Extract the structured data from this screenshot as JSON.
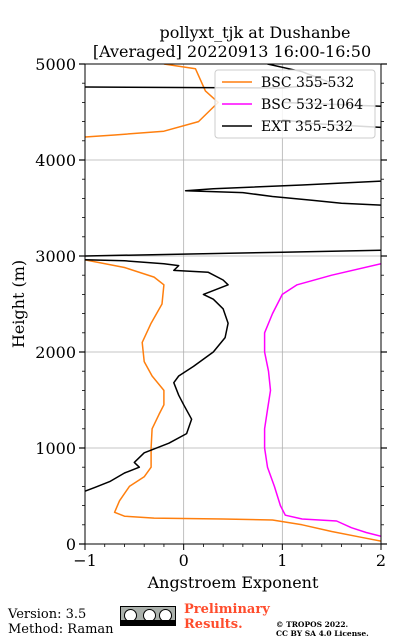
{
  "chart_data": {
    "type": "line",
    "title": "pollyxt_tjk at Dushanbe",
    "subtitle": "[Averaged] 20220913 16:00-16:50",
    "xlabel": "Angstroem Exponent",
    "ylabel": "Height (m)",
    "xlim": [
      -1,
      2
    ],
    "ylim": [
      0,
      5000
    ],
    "xticks": [
      -1,
      0,
      1,
      2
    ],
    "yticks": [
      0,
      1000,
      2000,
      3000,
      4000,
      5000
    ],
    "grid": true,
    "legend_position": "top-right",
    "series": [
      {
        "name": "BSC 355-532",
        "color": "#ff7f0e",
        "points": [
          [
            -0.2,
            5000
          ],
          [
            0.12,
            4950
          ],
          [
            0.22,
            4720
          ],
          [
            0.35,
            4600
          ],
          [
            0.15,
            4400
          ],
          [
            -0.2,
            4300
          ],
          [
            -0.7,
            4260
          ],
          [
            -1.0,
            4240
          ],
          [
            null,
            null
          ],
          [
            -1.0,
            2960
          ],
          [
            -0.6,
            2880
          ],
          [
            -0.3,
            2780
          ],
          [
            -0.2,
            2700
          ],
          [
            -0.22,
            2500
          ],
          [
            -0.33,
            2300
          ],
          [
            -0.42,
            2100
          ],
          [
            -0.4,
            1900
          ],
          [
            -0.32,
            1750
          ],
          [
            -0.2,
            1600
          ],
          [
            -0.2,
            1450
          ],
          [
            -0.25,
            1350
          ],
          [
            -0.32,
            1200
          ],
          [
            -0.33,
            1000
          ],
          [
            -0.33,
            800
          ],
          [
            -0.4,
            700
          ],
          [
            -0.55,
            600
          ],
          [
            -0.65,
            450
          ],
          [
            -0.7,
            330
          ],
          [
            -0.6,
            290
          ],
          [
            -0.3,
            270
          ],
          [
            0.4,
            260
          ],
          [
            0.9,
            250
          ],
          [
            1.2,
            200
          ],
          [
            1.5,
            130
          ],
          [
            1.8,
            70
          ],
          [
            2.0,
            30
          ]
        ]
      },
      {
        "name": "BSC 532-1064",
        "color": "#ff00ff",
        "points": [
          [
            2.0,
            2920
          ],
          [
            1.5,
            2800
          ],
          [
            1.15,
            2700
          ],
          [
            1.0,
            2600
          ],
          [
            0.9,
            2400
          ],
          [
            0.82,
            2200
          ],
          [
            0.82,
            2000
          ],
          [
            0.86,
            1800
          ],
          [
            0.88,
            1600
          ],
          [
            0.85,
            1400
          ],
          [
            0.82,
            1200
          ],
          [
            0.82,
            1000
          ],
          [
            0.85,
            800
          ],
          [
            0.92,
            600
          ],
          [
            0.98,
            400
          ],
          [
            1.03,
            300
          ],
          [
            1.2,
            260
          ],
          [
            1.55,
            240
          ],
          [
            1.7,
            170
          ],
          [
            1.85,
            120
          ],
          [
            2.0,
            80
          ]
        ]
      },
      {
        "name": "EXT 355-532",
        "color": "#000000",
        "points": [
          [
            0.85,
            5000
          ],
          [
            1.2,
            4920
          ],
          [
            1.5,
            4800
          ],
          [
            1.0,
            4750
          ],
          [
            -1.0,
            4760
          ],
          [
            null,
            null
          ],
          [
            2.0,
            4560
          ],
          [
            1.0,
            4600
          ],
          [
            null,
            null
          ],
          [
            2.0,
            4340
          ],
          [
            1.3,
            4380
          ],
          [
            1.0,
            4420
          ],
          [
            null,
            null
          ],
          [
            2.0,
            3780
          ],
          [
            1.2,
            3740
          ],
          [
            0.3,
            3700
          ],
          [
            0.02,
            3680
          ],
          [
            0.6,
            3660
          ],
          [
            0.9,
            3620
          ],
          [
            1.3,
            3580
          ],
          [
            1.6,
            3550
          ],
          [
            2.0,
            3530
          ],
          [
            null,
            null
          ],
          [
            2.0,
            3060
          ],
          [
            1.0,
            3040
          ],
          [
            0.0,
            3020
          ],
          [
            -1.0,
            3000
          ],
          [
            null,
            null
          ],
          [
            -1.0,
            2960
          ],
          [
            -0.6,
            2950
          ],
          [
            -0.2,
            2920
          ],
          [
            -0.05,
            2900
          ],
          [
            -0.1,
            2850
          ],
          [
            0.25,
            2830
          ],
          [
            0.4,
            2750
          ],
          [
            0.45,
            2700
          ],
          [
            0.2,
            2600
          ],
          [
            0.3,
            2550
          ],
          [
            0.4,
            2450
          ],
          [
            0.45,
            2300
          ],
          [
            0.42,
            2150
          ],
          [
            0.3,
            2000
          ],
          [
            0.1,
            1850
          ],
          [
            -0.05,
            1750
          ],
          [
            -0.1,
            1680
          ],
          [
            -0.05,
            1550
          ],
          [
            0.0,
            1450
          ],
          [
            0.08,
            1300
          ],
          [
            0.03,
            1150
          ],
          [
            -0.15,
            1050
          ],
          [
            -0.4,
            950
          ],
          [
            -0.5,
            850
          ],
          [
            -0.45,
            800
          ],
          [
            -0.6,
            740
          ],
          [
            -0.75,
            650
          ],
          [
            -0.9,
            590
          ],
          [
            -1.0,
            550
          ]
        ]
      }
    ]
  },
  "footer": {
    "version": "Version: 3.5",
    "method": "Method: Raman",
    "preliminary_line1": "Preliminary",
    "preliminary_line2": "Results.",
    "copyright_line1": "© TROPOS 2022.",
    "copyright_line2": "CC BY SA 4.0 License."
  },
  "license_badge": {
    "icon_names": [
      "cc-icon",
      "by-icon",
      "sa-icon"
    ],
    "text": "cc"
  }
}
